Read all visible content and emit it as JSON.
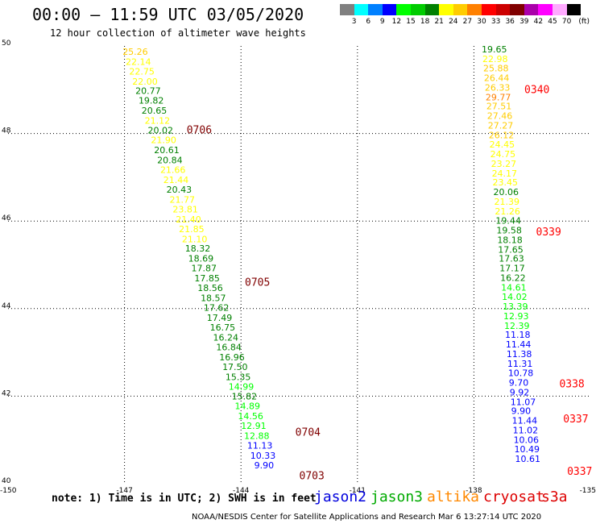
{
  "header": {
    "title": "00:00 – 11:59 UTC 03/05/2020",
    "subtitle": "12 hour collection of altimeter wave heights"
  },
  "legend": {
    "unit": "(ft)",
    "bins": [
      {
        "label": "3",
        "color": "#808080"
      },
      {
        "label": "6",
        "color": "#00ffff"
      },
      {
        "label": "9",
        "color": "#0080ff"
      },
      {
        "label": "12",
        "color": "#0000ff"
      },
      {
        "label": "15",
        "color": "#00ff00"
      },
      {
        "label": "18",
        "color": "#00cc00"
      },
      {
        "label": "21",
        "color": "#008000"
      },
      {
        "label": "24",
        "color": "#ffff00"
      },
      {
        "label": "27",
        "color": "#ffcc00"
      },
      {
        "label": "30",
        "color": "#ff8000"
      },
      {
        "label": "33",
        "color": "#ff0000"
      },
      {
        "label": "36",
        "color": "#cc0000"
      },
      {
        "label": "39",
        "color": "#800000"
      },
      {
        "label": "42",
        "color": "#aa00aa"
      },
      {
        "label": "45",
        "color": "#ff00ff"
      },
      {
        "label": "70",
        "color": "#ffaaff"
      },
      {
        "label": "",
        "color": "#000000"
      }
    ]
  },
  "footer": {
    "note": "note: 1) Time is in UTC; 2) SWH is in feet",
    "satellites": [
      {
        "name": "jason2",
        "color": "#0000dd"
      },
      {
        "name": "jason3",
        "color": "#00aa00"
      },
      {
        "name": "altika",
        "color": "#ff8800"
      },
      {
        "name": "cryosat",
        "color": "#dd0000"
      },
      {
        "name": "s3a",
        "color": "#dd0000"
      }
    ],
    "credit": "NOAA/NESDIS Center for Satellite Applications and Research   Mar  6 13:27:14 UTC 2020"
  },
  "chart_data": {
    "type": "scatter",
    "title": "12 hour collection of altimeter wave heights",
    "xlim": [
      -150,
      -135
    ],
    "ylim": [
      40,
      50
    ],
    "xticks": [
      "-150",
      "-147",
      "-144",
      "-141",
      "-138",
      "-135"
    ],
    "yticks": [
      "40",
      "42",
      "44",
      "46",
      "48",
      "50"
    ],
    "grid": true,
    "tracks": [
      {
        "name": "west",
        "points": [
          {
            "lon": -147.05,
            "lat": 49.8,
            "v": "25.26",
            "c": "#ffcc00"
          },
          {
            "lon": -146.97,
            "lat": 49.57,
            "v": "22.14",
            "c": "#ffff00"
          },
          {
            "lon": -146.88,
            "lat": 49.35,
            "v": "22.75",
            "c": "#ffff00"
          },
          {
            "lon": -146.8,
            "lat": 49.12,
            "v": "22.00",
            "c": "#ffff00"
          },
          {
            "lon": -146.72,
            "lat": 48.9,
            "v": "20.77",
            "c": "#008000"
          },
          {
            "lon": -146.64,
            "lat": 48.68,
            "v": "19.82",
            "c": "#008000"
          },
          {
            "lon": -146.56,
            "lat": 48.45,
            "v": "20.65",
            "c": "#008000"
          },
          {
            "lon": -146.48,
            "lat": 48.22,
            "v": "21.12",
            "c": "#ffff00"
          },
          {
            "lon": -146.4,
            "lat": 48.0,
            "v": "20.02",
            "c": "#008000"
          },
          {
            "lon": -146.32,
            "lat": 47.78,
            "v": "21.90",
            "c": "#ffff00"
          },
          {
            "lon": -146.24,
            "lat": 47.55,
            "v": "20.61",
            "c": "#008000"
          },
          {
            "lon": -146.16,
            "lat": 47.32,
            "v": "20.84",
            "c": "#008000"
          },
          {
            "lon": -146.08,
            "lat": 47.1,
            "v": "21.66",
            "c": "#ffff00"
          },
          {
            "lon": -146.0,
            "lat": 46.87,
            "v": "21.44",
            "c": "#ffff00"
          },
          {
            "lon": -145.92,
            "lat": 46.65,
            "v": "20.43",
            "c": "#008000"
          },
          {
            "lon": -145.84,
            "lat": 46.42,
            "v": "21.77",
            "c": "#ffff00"
          },
          {
            "lon": -145.76,
            "lat": 46.2,
            "v": "23.81",
            "c": "#ffff00"
          },
          {
            "lon": -145.68,
            "lat": 45.97,
            "v": "21.40",
            "c": "#ffff00"
          },
          {
            "lon": -145.6,
            "lat": 45.75,
            "v": "21.85",
            "c": "#ffff00"
          },
          {
            "lon": -145.52,
            "lat": 45.52,
            "v": "21.10",
            "c": "#ffff00"
          },
          {
            "lon": -145.44,
            "lat": 45.3,
            "v": "18.32",
            "c": "#008000"
          },
          {
            "lon": -145.36,
            "lat": 45.07,
            "v": "18.69",
            "c": "#008000"
          },
          {
            "lon": -145.28,
            "lat": 44.85,
            "v": "17.87",
            "c": "#008000"
          },
          {
            "lon": -145.2,
            "lat": 44.62,
            "v": "17.85",
            "c": "#008000"
          },
          {
            "lon": -145.12,
            "lat": 44.4,
            "v": "18.56",
            "c": "#008000"
          },
          {
            "lon": -145.04,
            "lat": 44.17,
            "v": "18.57",
            "c": "#008000"
          },
          {
            "lon": -144.96,
            "lat": 43.95,
            "v": "17.62",
            "c": "#008000"
          },
          {
            "lon": -144.88,
            "lat": 43.72,
            "v": "17.49",
            "c": "#008000"
          },
          {
            "lon": -144.8,
            "lat": 43.5,
            "v": "16.75",
            "c": "#008000"
          },
          {
            "lon": -144.72,
            "lat": 43.27,
            "v": "16.24",
            "c": "#008000"
          },
          {
            "lon": -144.64,
            "lat": 43.05,
            "v": "16.84",
            "c": "#008000"
          },
          {
            "lon": -144.56,
            "lat": 42.82,
            "v": "16.96",
            "c": "#008000"
          },
          {
            "lon": -144.48,
            "lat": 42.6,
            "v": "17.50",
            "c": "#008000"
          },
          {
            "lon": -144.4,
            "lat": 42.37,
            "v": "15.35",
            "c": "#008000"
          },
          {
            "lon": -144.32,
            "lat": 42.15,
            "v": "14.99",
            "c": "#00ff00"
          },
          {
            "lon": -144.24,
            "lat": 41.92,
            "v": "15.82",
            "c": "#008000"
          },
          {
            "lon": -144.16,
            "lat": 41.7,
            "v": "14.89",
            "c": "#00ff00"
          },
          {
            "lon": -144.08,
            "lat": 41.47,
            "v": "14.56",
            "c": "#00ff00"
          },
          {
            "lon": -144.0,
            "lat": 41.25,
            "v": "12.91",
            "c": "#00ff00"
          },
          {
            "lon": -143.92,
            "lat": 41.02,
            "v": "12.88",
            "c": "#00ff00"
          },
          {
            "lon": -143.84,
            "lat": 40.8,
            "v": "11.13",
            "c": "#0000ff"
          },
          {
            "lon": -143.76,
            "lat": 40.57,
            "v": "10.33",
            "c": "#0000ff"
          },
          {
            "lon": -143.66,
            "lat": 40.35,
            "v": "9.90",
            "c": "#0000ff"
          }
        ]
      },
      {
        "name": "east",
        "points": [
          {
            "lon": -137.8,
            "lat": 49.85,
            "v": "19.65",
            "c": "#008000"
          },
          {
            "lon": -137.78,
            "lat": 49.63,
            "v": "22.98",
            "c": "#ffff00"
          },
          {
            "lon": -137.76,
            "lat": 49.42,
            "v": "25.88",
            "c": "#ffcc00"
          },
          {
            "lon": -137.74,
            "lat": 49.2,
            "v": "26.44",
            "c": "#ffcc00"
          },
          {
            "lon": -137.72,
            "lat": 48.98,
            "v": "26.33",
            "c": "#ffcc00"
          },
          {
            "lon": -137.7,
            "lat": 48.76,
            "v": "29.77",
            "c": "#ff8000"
          },
          {
            "lon": -137.68,
            "lat": 48.55,
            "v": "27.51",
            "c": "#ffcc00"
          },
          {
            "lon": -137.66,
            "lat": 48.33,
            "v": "27.46",
            "c": "#ffcc00"
          },
          {
            "lon": -137.64,
            "lat": 48.11,
            "v": "27.27",
            "c": "#ffcc00"
          },
          {
            "lon": -137.62,
            "lat": 47.89,
            "v": "26.12",
            "c": "#ffcc00"
          },
          {
            "lon": -137.6,
            "lat": 47.68,
            "v": "24.45",
            "c": "#ffff00"
          },
          {
            "lon": -137.58,
            "lat": 47.46,
            "v": "24.75",
            "c": "#ffff00"
          },
          {
            "lon": -137.56,
            "lat": 47.24,
            "v": "23.27",
            "c": "#ffff00"
          },
          {
            "lon": -137.54,
            "lat": 47.02,
            "v": "24.17",
            "c": "#ffff00"
          },
          {
            "lon": -137.52,
            "lat": 46.81,
            "v": "23.45",
            "c": "#ffff00"
          },
          {
            "lon": -137.5,
            "lat": 46.59,
            "v": "20.06",
            "c": "#008000"
          },
          {
            "lon": -137.48,
            "lat": 46.37,
            "v": "21.39",
            "c": "#ffff00"
          },
          {
            "lon": -137.46,
            "lat": 46.15,
            "v": "21.26",
            "c": "#ffff00"
          },
          {
            "lon": -137.44,
            "lat": 45.94,
            "v": "19.44",
            "c": "#008000"
          },
          {
            "lon": -137.42,
            "lat": 45.72,
            "v": "19.58",
            "c": "#008000"
          },
          {
            "lon": -137.4,
            "lat": 45.5,
            "v": "18.18",
            "c": "#008000"
          },
          {
            "lon": -137.38,
            "lat": 45.28,
            "v": "17.65",
            "c": "#008000"
          },
          {
            "lon": -137.36,
            "lat": 45.07,
            "v": "17.63",
            "c": "#008000"
          },
          {
            "lon": -137.34,
            "lat": 44.85,
            "v": "17.17",
            "c": "#008000"
          },
          {
            "lon": -137.32,
            "lat": 44.63,
            "v": "16.22",
            "c": "#008000"
          },
          {
            "lon": -137.3,
            "lat": 44.41,
            "v": "14.61",
            "c": "#00ff00"
          },
          {
            "lon": -137.28,
            "lat": 44.2,
            "v": "14.02",
            "c": "#00ff00"
          },
          {
            "lon": -137.26,
            "lat": 43.98,
            "v": "13.39",
            "c": "#00ff00"
          },
          {
            "lon": -137.24,
            "lat": 43.76,
            "v": "12.93",
            "c": "#00ff00"
          },
          {
            "lon": -137.22,
            "lat": 43.54,
            "v": "12.39",
            "c": "#00ff00"
          },
          {
            "lon": -137.2,
            "lat": 43.33,
            "v": "11.18",
            "c": "#0000ff"
          },
          {
            "lon": -137.18,
            "lat": 43.11,
            "v": "11.44",
            "c": "#0000ff"
          },
          {
            "lon": -137.16,
            "lat": 42.89,
            "v": "11.38",
            "c": "#0000ff"
          },
          {
            "lon": -137.14,
            "lat": 42.67,
            "v": "11.31",
            "c": "#0000ff"
          },
          {
            "lon": -137.12,
            "lat": 42.46,
            "v": "10.78",
            "c": "#0000ff"
          },
          {
            "lon": -137.1,
            "lat": 42.24,
            "v": "9.70",
            "c": "#0000ff"
          },
          {
            "lon": -137.08,
            "lat": 42.02,
            "v": "9.92",
            "c": "#0000ff"
          },
          {
            "lon": -137.06,
            "lat": 41.8,
            "v": "11.07",
            "c": "#0000ff"
          },
          {
            "lon": -137.04,
            "lat": 41.59,
            "v": "9.90",
            "c": "#0000ff"
          },
          {
            "lon": -137.02,
            "lat": 41.37,
            "v": "11.44",
            "c": "#0000ff"
          },
          {
            "lon": -137.0,
            "lat": 41.15,
            "v": "11.02",
            "c": "#0000ff"
          },
          {
            "lon": -136.98,
            "lat": 40.93,
            "v": "10.06",
            "c": "#0000ff"
          },
          {
            "lon": -136.96,
            "lat": 40.72,
            "v": "10.49",
            "c": "#0000ff"
          },
          {
            "lon": -136.94,
            "lat": 40.5,
            "v": "10.61",
            "c": "#0000ff"
          }
        ]
      }
    ],
    "time_labels": [
      {
        "text": "0706",
        "lon": -145.4,
        "lat": 48.0,
        "c": "#800000"
      },
      {
        "text": "0705",
        "lon": -143.9,
        "lat": 44.52,
        "c": "#800000"
      },
      {
        "text": "0704",
        "lon": -142.6,
        "lat": 41.1,
        "c": "#800000"
      },
      {
        "text": "0703",
        "lon": -142.5,
        "lat": 40.1,
        "c": "#800000"
      },
      {
        "text": "0340",
        "lon": -136.7,
        "lat": 48.92,
        "c": "#ff0000"
      },
      {
        "text": "0339",
        "lon": -136.4,
        "lat": 45.67,
        "c": "#ff0000"
      },
      {
        "text": "0338",
        "lon": -135.8,
        "lat": 42.2,
        "c": "#ff0000"
      },
      {
        "text": "0337",
        "lon": -135.7,
        "lat": 41.4,
        "c": "#ff0000"
      },
      {
        "text": "0337",
        "lon": -135.6,
        "lat": 40.2,
        "c": "#ff0000"
      }
    ]
  }
}
